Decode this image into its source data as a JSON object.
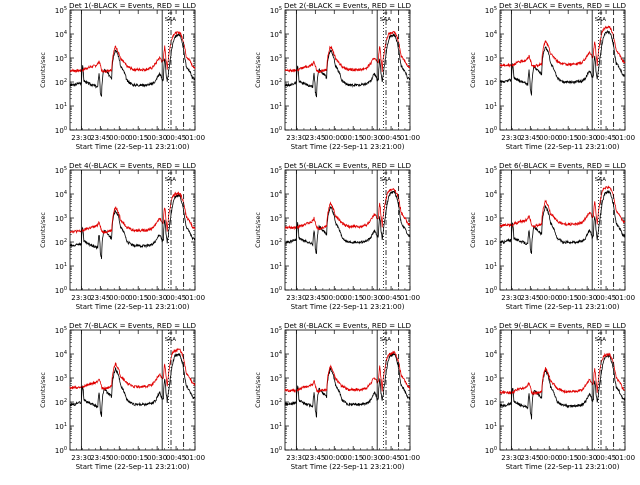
{
  "chart_data": {
    "type": "line",
    "layout": "3x3 grid of panels",
    "xlabel": "Start Time (22-Sep-11 23:21:00)",
    "ylabel": "Counts/sec",
    "y_scale": "log",
    "ylim": [
      1,
      100000
    ],
    "y_tick_labels": [
      "10^0",
      "10^1",
      "10^2",
      "10^3",
      "10^4",
      "10^5"
    ],
    "x_tick_labels": [
      "23:30",
      "23:45",
      "00:00",
      "00:15",
      "00:30",
      "00:45",
      "01:00"
    ],
    "x_range_minutes_from_start": [
      0,
      99
    ],
    "colors": {
      "black_series": "#000000",
      "red_series": "#e00000"
    },
    "marker_text": "SAA",
    "panels": [
      {
        "title": "Det 1(-BLACK = Events, RED = LLD",
        "red_start": 300,
        "black_start": 75
      },
      {
        "title": "Det 2(-BLACK = Events, RED = LLD",
        "red_start": 300,
        "black_start": 75
      },
      {
        "title": "Det 3(-BLACK = Events, RED = LLD",
        "red_start": 500,
        "black_start": 100
      },
      {
        "title": "Det 4(-BLACK = Events, RED = LLD",
        "red_start": 280,
        "black_start": 70
      },
      {
        "title": "Det 5(-BLACK = Events, RED = LLD",
        "red_start": 400,
        "black_start": 100
      },
      {
        "title": "Det 6(-BLACK = Events, RED = LLD",
        "red_start": 500,
        "black_start": 100
      },
      {
        "title": "Det 7(-BLACK = Events, RED = LLD",
        "red_start": 400,
        "black_start": 80
      },
      {
        "title": "Det 8(-BLACK = Events, RED = LLD",
        "red_start": 300,
        "black_start": 80
      },
      {
        "title": "Det 9(-BLACK = Events, RED = LLD",
        "red_start": 250,
        "black_start": 70
      }
    ],
    "series_profile_minutes": [
      0,
      4,
      7,
      9,
      10,
      11,
      12,
      14,
      16,
      18,
      20,
      21,
      22,
      23,
      24,
      25,
      27,
      30,
      33,
      36,
      40,
      45,
      50,
      55,
      60,
      65,
      68,
      70,
      71,
      72,
      73,
      74,
      75,
      76,
      77,
      78,
      79,
      80,
      81,
      82,
      83,
      85,
      87,
      88,
      90,
      91,
      92,
      95,
      97,
      99
    ],
    "red_profile_relative": [
      1,
      1,
      1,
      1,
      1.05,
      1.1,
      1.2,
      1.3,
      1.4,
      1.5,
      1.6,
      1.7,
      1.9,
      2.5,
      1.7,
      1.0,
      0.9,
      1.0,
      1.1,
      10,
      3,
      1.5,
      1.1,
      1.1,
      1.1,
      1.3,
      2.0,
      3.0,
      3.4,
      3.0,
      2.2,
      2.5,
      10,
      3,
      1.0,
      3.5,
      8,
      15,
      25,
      32,
      35,
      38,
      38,
      30,
      15,
      8,
      4,
      2.5,
      1.5,
      1.3
    ],
    "black_profile_relative": [
      1,
      1,
      1.2,
      1.2,
      6,
      1.5,
      1.4,
      1.2,
      1.1,
      1.0,
      0.9,
      0.85,
      0.8,
      3,
      0.5,
      0.3,
      4.4,
      3.0,
      2.0,
      30,
      6,
      1.5,
      1.0,
      1.0,
      1.0,
      1.1,
      1.5,
      2.5,
      3.0,
      2.4,
      1.6,
      1.8,
      12,
      3,
      1.3,
      3,
      8,
      18,
      40,
      70,
      100,
      120,
      120,
      80,
      30,
      12,
      6,
      3.5,
      2,
      1.8
    ],
    "vertical_markers_minutes": [
      {
        "x": 9,
        "style": "solid"
      },
      {
        "x": 73,
        "style": "solid"
      },
      {
        "x": 78,
        "style": "dotted"
      },
      {
        "x": 80,
        "style": "dashdot"
      },
      {
        "x": 90,
        "style": "dashed"
      }
    ],
    "saa_marker_minutes": [
      78,
      81
    ]
  }
}
